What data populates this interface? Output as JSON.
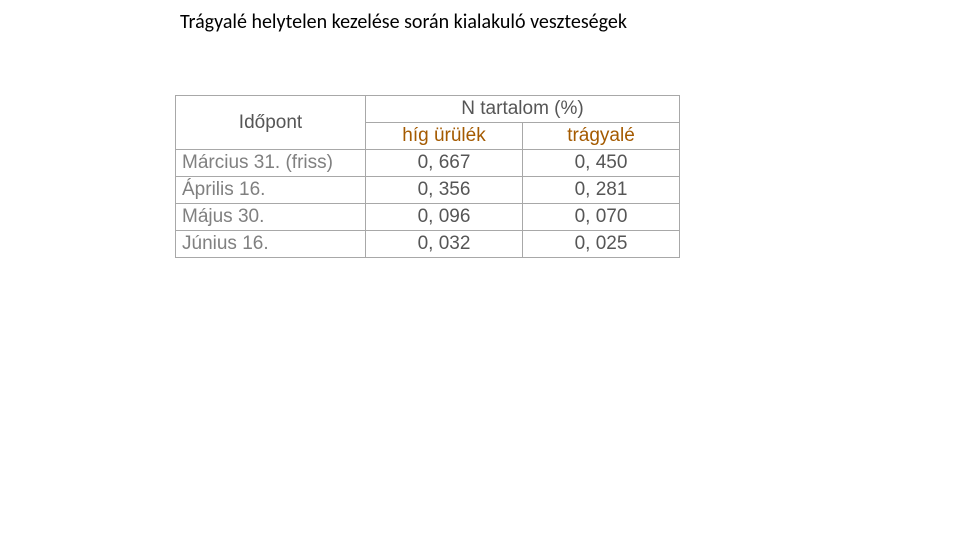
{
  "title": "Trágyalé helytelen kezelése során kialakuló veszteségek",
  "table": {
    "header_left": "Időpont",
    "header_main": "N tartalom (%)",
    "sub_headers": [
      "híg ürülék",
      "trágyalé"
    ],
    "rows": [
      {
        "label": "Március 31. (friss)",
        "values": [
          "0, 667",
          "0, 450"
        ]
      },
      {
        "label": "Április 16.",
        "values": [
          "0, 356",
          "0, 281"
        ]
      },
      {
        "label": "Május 30.",
        "values": [
          "0, 096",
          "0, 070"
        ]
      },
      {
        "label": "Június 16.",
        "values": [
          "0, 032",
          "0, 025"
        ]
      }
    ]
  },
  "colors": {
    "border": "#a8a8a8",
    "header_text": "#565656",
    "subheader_text": "#a45a00",
    "rowlabel_text": "#808080",
    "value_text": "#565656",
    "title_text": "#000000",
    "background": "#ffffff"
  },
  "font_sizes": {
    "title": 20,
    "table": 19
  }
}
